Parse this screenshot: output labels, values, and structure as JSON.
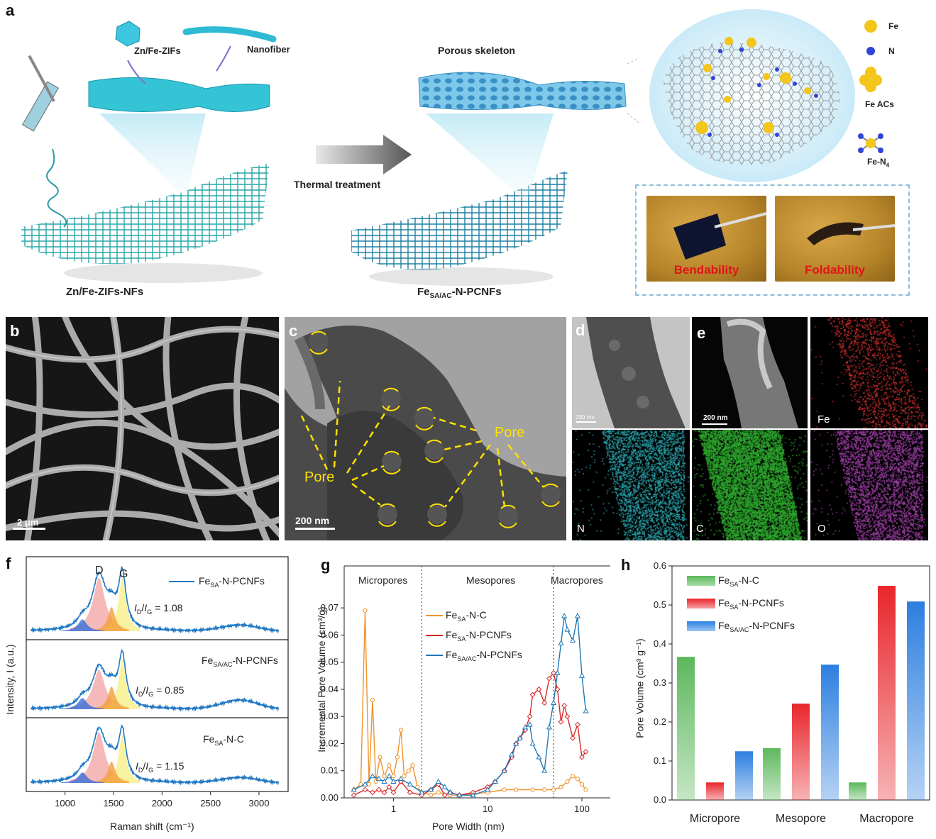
{
  "panels": {
    "a": "a",
    "b": "b",
    "c": "c",
    "d": "d",
    "e": "e",
    "f": "f",
    "g": "g",
    "h": "h"
  },
  "schematic": {
    "zif_label": "Zn/Fe-ZIFs",
    "nanofiber_label": "Nanofiber",
    "porous_label": "Porous skeleton",
    "thermal_label": "Thermal treatment",
    "left_caption": "Zn/Fe-ZIFs-NFs",
    "right_caption_main": "Fe",
    "right_caption_sub": "SA/AC",
    "right_caption_tail": "-N-PCNFs",
    "legend_fe": "Fe",
    "legend_n": "N",
    "legend_feacs": "Fe ACs",
    "legend_fen4_main": "Fe-N",
    "legend_fen4_sub": "4",
    "bend_label": "Bendability",
    "fold_label": "Foldability"
  },
  "micro": {
    "b_scale": "2 μm",
    "c_scale": "200 nm",
    "c_pore1": "Pore",
    "c_pore2": "Pore",
    "d_scale": "200 nm",
    "e_scale": "200 nm",
    "map_fe": "Fe",
    "map_n": "N",
    "map_c": "C",
    "map_o": "O"
  },
  "raman": {
    "xlabel": "Raman shift (cm⁻¹)",
    "ylabel": "Intensity, I (a.u.)",
    "xticks": [
      "1000",
      "1500",
      "2000",
      "2500",
      "3000"
    ],
    "peak_d": "D",
    "peak_g": "G",
    "traces": [
      {
        "name_main": "Fe",
        "name_sub": "SA",
        "name_tail": "-N-PCNFs",
        "ratio": "= 1.08",
        "ratio_value": 1.08
      },
      {
        "name_main": "Fe",
        "name_sub": "SA/AC",
        "name_tail": "-N-PCNFs",
        "ratio": "= 0.85",
        "ratio_value": 0.85
      },
      {
        "name_main": "Fe",
        "name_sub": "SA",
        "name_tail": "-N-C",
        "ratio": "= 1.15",
        "ratio_value": 1.15
      }
    ],
    "ratio_label_main": "I",
    "ratio_label_d": "D",
    "ratio_label_g": "G"
  },
  "chart_data": [
    {
      "type": "line",
      "xlabel": "Pore Width (nm)",
      "ylabel": "Incremental Pore Volume (cm³/g)",
      "xscale": "log",
      "xlim": [
        0.3,
        200
      ],
      "ylim": [
        0,
        0.075
      ],
      "xtick_labels": [
        "1",
        "10",
        "100"
      ],
      "ytick_labels": [
        "0.00",
        "0.01",
        "0.02",
        "0.03",
        "0.04",
        "0.05",
        "0.06",
        "0.07"
      ],
      "regions": [
        "Micropores",
        "Mesopores",
        "Macropores"
      ],
      "region_boundaries": [
        2,
        50
      ],
      "series": [
        {
          "name": "FeSA-N-C",
          "color": "#f0932b",
          "x": [
            0.38,
            0.45,
            0.5,
            0.55,
            0.6,
            0.65,
            0.72,
            0.8,
            0.9,
            1.0,
            1.1,
            1.2,
            1.3,
            1.45,
            1.6,
            1.8,
            2.0,
            2.5,
            3,
            4,
            5,
            7,
            10,
            15,
            20,
            30,
            40,
            50,
            60,
            70,
            80,
            90,
            100,
            110
          ],
          "y": [
            0.003,
            0.005,
            0.069,
            0.005,
            0.036,
            0.006,
            0.015,
            0.008,
            0.012,
            0.008,
            0.015,
            0.025,
            0.008,
            0.01,
            0.012,
            0.004,
            0.002,
            0.001,
            0.002,
            0.001,
            0.001,
            0.0015,
            0.002,
            0.003,
            0.003,
            0.003,
            0.003,
            0.003,
            0.004,
            0.006,
            0.008,
            0.007,
            0.005,
            0.003
          ]
        },
        {
          "name": "FeSA-N-PCNFs",
          "color": "#d62728",
          "x": [
            0.38,
            0.5,
            0.6,
            0.7,
            0.8,
            0.9,
            1.0,
            1.2,
            1.5,
            2.0,
            2.5,
            3,
            3.5,
            4,
            5,
            7,
            10,
            12,
            15,
            18,
            20,
            22,
            25,
            28,
            30,
            35,
            40,
            45,
            50,
            55,
            60,
            65,
            70,
            80,
            90,
            100,
            110
          ],
          "y": [
            0.001,
            0.003,
            0.002,
            0.003,
            0.002,
            0.004,
            0.002,
            0.006,
            0.002,
            0.001,
            0.003,
            0.005,
            0.001,
            0.002,
            0.001,
            0.002,
            0.004,
            0.006,
            0.01,
            0.015,
            0.02,
            0.022,
            0.025,
            0.03,
            0.038,
            0.04,
            0.035,
            0.044,
            0.046,
            0.04,
            0.028,
            0.034,
            0.03,
            0.022,
            0.027,
            0.015,
            0.017
          ]
        },
        {
          "name": "FeSA/AC-N-PCNFs",
          "color": "#1f77b4",
          "x": [
            0.38,
            0.5,
            0.6,
            0.7,
            0.8,
            0.9,
            1.0,
            1.2,
            1.5,
            2.0,
            2.5,
            3,
            3.5,
            4,
            5,
            7,
            10,
            12,
            15,
            18,
            20,
            22,
            25,
            28,
            30,
            35,
            40,
            45,
            50,
            55,
            60,
            65,
            70,
            80,
            90,
            100,
            110
          ],
          "y": [
            0.003,
            0.005,
            0.008,
            0.007,
            0.006,
            0.008,
            0.006,
            0.007,
            0.005,
            0.002,
            0.003,
            0.006,
            0.004,
            0.002,
            0.001,
            0.001,
            0.003,
            0.006,
            0.01,
            0.016,
            0.02,
            0.022,
            0.026,
            0.027,
            0.02,
            0.015,
            0.01,
            0.026,
            0.035,
            0.046,
            0.057,
            0.067,
            0.062,
            0.058,
            0.067,
            0.045,
            0.032
          ]
        }
      ]
    },
    {
      "type": "bar",
      "categories": [
        "Micropore",
        "Mesopore",
        "Macropore"
      ],
      "ylabel": "Pore Volume (cm³ g⁻¹)",
      "ylim": [
        0,
        0.6
      ],
      "ytick_labels": [
        "0.0",
        "0.1",
        "0.2",
        "0.3",
        "0.4",
        "0.5",
        "0.6"
      ],
      "legend_position": "top-left",
      "series": [
        {
          "name": "FeSA-N-C",
          "color": "#5cb85c",
          "values": [
            0.367,
            0.133,
            0.045
          ]
        },
        {
          "name": "FeSA-N-PCNFs",
          "color": "#e8262b",
          "values": [
            0.045,
            0.247,
            0.549
          ]
        },
        {
          "name": "FeSA/AC-N-PCNFs",
          "color": "#2d7fe0",
          "values": [
            0.125,
            0.347,
            0.509
          ]
        }
      ]
    }
  ],
  "legend_names": {
    "g": [
      {
        "main": "Fe",
        "sub": "SA",
        "tail": "-N-C"
      },
      {
        "main": "Fe",
        "sub": "SA",
        "tail": "-N-PCNFs"
      },
      {
        "main": "Fe",
        "sub": "SA/AC",
        "tail": "-N-PCNFs"
      }
    ],
    "h": [
      {
        "main": "Fe",
        "sub": "SA",
        "tail": "-N-C"
      },
      {
        "main": "Fe",
        "sub": "SA",
        "tail": "-N-PCNFs"
      },
      {
        "main": "Fe",
        "sub": "SA/AC",
        "tail": "-N-PCNFs"
      }
    ]
  }
}
